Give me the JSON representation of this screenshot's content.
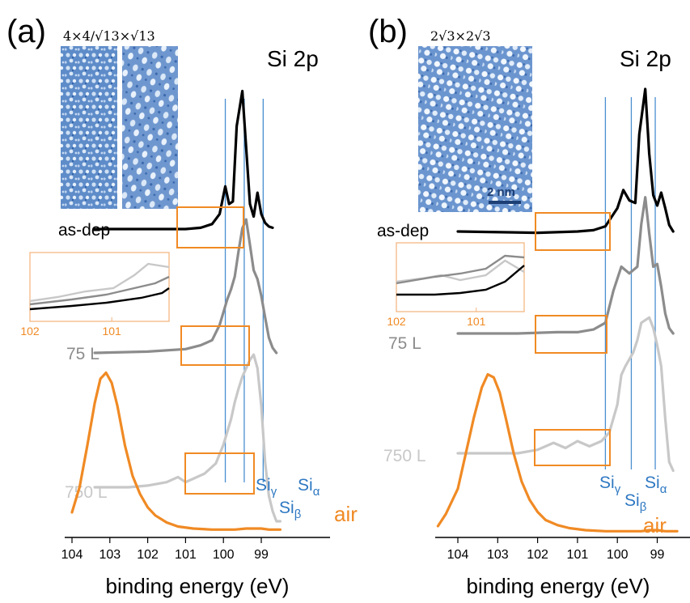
{
  "colors": {
    "black": "#000000",
    "gray75": "#8c8c8c",
    "gray750": "#c8c8c8",
    "air": "#f08a24",
    "marker": "#4a8fd0",
    "marker_text": "#2e78c2",
    "stm": "#5b86c6"
  },
  "chart_data": [
    {
      "type": "line",
      "panel_label": "(a)",
      "title": "Si 2p",
      "inset_image_caption": "4×4/√13×√13",
      "xlabel": "binding energy (eV)",
      "ylabel": "",
      "xlim": [
        104,
        98.5
      ],
      "x_reversed": true,
      "x_ticks": [
        104,
        103,
        102,
        101,
        100,
        99
      ],
      "y_units": "arbitrary intensity",
      "series": [
        {
          "name": "as-dep",
          "x": [
            103.4,
            102.0,
            101.0,
            100.6,
            100.3,
            100.1,
            99.95,
            99.85,
            99.75,
            99.65,
            99.5,
            99.4,
            99.3,
            99.2,
            99.1,
            99.0,
            98.9,
            98.8,
            98.7
          ],
          "y": [
            100,
            100,
            100,
            101,
            104,
            112,
            134,
            120,
            122,
            182,
            210,
            165,
            120,
            110,
            129,
            112,
            105,
            102,
            101
          ]
        },
        {
          "name": "75 L",
          "x": [
            103.4,
            102.0,
            101.0,
            100.6,
            100.3,
            100.1,
            99.9,
            99.8,
            99.7,
            99.6,
            99.5,
            99.4,
            99.3,
            99.2,
            99.1,
            99.0,
            98.9,
            98.8,
            98.7,
            98.6
          ],
          "y": [
            100,
            101,
            103,
            106,
            110,
            122,
            142,
            150,
            160,
            180,
            198,
            205,
            185,
            165,
            158,
            145,
            128,
            112,
            104,
            100
          ]
        },
        {
          "name": "750 L",
          "x": [
            103.4,
            102.5,
            102.0,
            101.5,
            101.2,
            101.0,
            100.8,
            100.5,
            100.2,
            100.0,
            99.8,
            99.7,
            99.6,
            99.5,
            99.3,
            99.2,
            99.1,
            99.0,
            98.9,
            98.8,
            98.7,
            98.6,
            98.5
          ],
          "y": [
            100,
            100,
            101,
            103,
            106,
            103,
            105,
            108,
            114,
            125,
            140,
            150,
            158,
            165,
            175,
            178,
            170,
            148,
            115,
            95,
            86,
            80,
            80
          ]
        },
        {
          "name": "air",
          "x": [
            104.0,
            103.8,
            103.6,
            103.4,
            103.25,
            103.1,
            102.95,
            102.8,
            102.6,
            102.4,
            102.2,
            102.0,
            101.8,
            101.5,
            101.2,
            100.8,
            100.3,
            100.0,
            99.7,
            99.4,
            99.2,
            99.0,
            98.8,
            98.5
          ],
          "y": [
            20,
            45,
            85,
            128,
            152,
            158,
            148,
            125,
            86,
            56,
            38,
            25,
            17,
            10,
            6,
            4,
            3,
            3,
            3,
            4,
            4,
            4,
            3,
            3
          ]
        }
      ],
      "markers": [
        {
          "label_main": "Si",
          "label_sub": "γ",
          "x": 99.95
        },
        {
          "label_main": "Si",
          "label_sub": "β",
          "x": 99.45
        },
        {
          "label_main": "Si",
          "label_sub": "α",
          "x": 98.95
        }
      ],
      "inset_zoom": {
        "x_ticks": [
          102,
          101
        ],
        "xlim": [
          102,
          100.3
        ]
      }
    },
    {
      "type": "line",
      "panel_label": "(b)",
      "title": "Si 2p",
      "inset_image_caption": "2√3×2√3",
      "scale_bar_label": "2 nm",
      "xlabel": "binding energy (eV)",
      "ylabel": "",
      "xlim": [
        104.5,
        98.5
      ],
      "x_reversed": true,
      "x_ticks": [
        104,
        103,
        102,
        101,
        100,
        99
      ],
      "y_units": "arbitrary intensity",
      "series": [
        {
          "name": "as-dep",
          "x": [
            104.0,
            102.0,
            101.0,
            100.6,
            100.3,
            100.0,
            99.85,
            99.7,
            99.55,
            99.45,
            99.3,
            99.2,
            99.1,
            99.0,
            98.9,
            98.8,
            98.7,
            98.6
          ],
          "y": [
            100,
            99,
            100,
            101,
            104,
            118,
            132,
            124,
            122,
            175,
            210,
            160,
            128,
            120,
            130,
            118,
            105,
            100
          ]
        },
        {
          "name": "75 L",
          "x": [
            104.0,
            102.5,
            101.5,
            101.0,
            100.6,
            100.3,
            100.1,
            99.9,
            99.7,
            99.5,
            99.4,
            99.3,
            99.2,
            99.1,
            99.0,
            98.9,
            98.8,
            98.7,
            98.6
          ],
          "y": [
            100,
            100,
            101,
            101,
            103,
            108,
            132,
            150,
            145,
            150,
            182,
            202,
            175,
            150,
            152,
            135,
            115,
            104,
            100
          ]
        },
        {
          "name": "750 L",
          "x": [
            104.0,
            102.5,
            102.0,
            101.6,
            101.3,
            101.0,
            100.7,
            100.4,
            100.2,
            100.0,
            99.9,
            99.8,
            99.6,
            99.5,
            99.4,
            99.2,
            99.1,
            99.0,
            98.9,
            98.8,
            98.7,
            98.6
          ],
          "y": [
            100,
            100,
            102,
            106,
            103,
            107,
            104,
            107,
            112,
            128,
            145,
            150,
            158,
            165,
            175,
            178,
            172,
            162,
            150,
            120,
            95,
            90
          ]
        },
        {
          "name": "air",
          "x": [
            104.5,
            104.3,
            104.0,
            103.8,
            103.6,
            103.4,
            103.25,
            103.1,
            102.95,
            102.8,
            102.6,
            102.4,
            102.2,
            102.0,
            101.8,
            101.5,
            101.2,
            100.8,
            100.3,
            100.0,
            99.7,
            99.4,
            99.2,
            99.0,
            98.8,
            98.5
          ],
          "y": [
            8,
            20,
            45,
            80,
            115,
            145,
            158,
            155,
            140,
            115,
            80,
            52,
            34,
            22,
            14,
            9,
            6,
            4,
            3,
            3,
            3,
            3,
            4,
            4,
            3,
            3
          ]
        }
      ],
      "markers": [
        {
          "label_main": "Si",
          "label_sub": "γ",
          "x": 100.3
        },
        {
          "label_main": "Si",
          "label_sub": "β",
          "x": 99.65
        },
        {
          "label_main": "Si",
          "label_sub": "α",
          "x": 99.05
        }
      ],
      "inset_zoom": {
        "x_ticks": [
          102,
          101
        ],
        "xlim": [
          102,
          100.4
        ]
      }
    }
  ]
}
